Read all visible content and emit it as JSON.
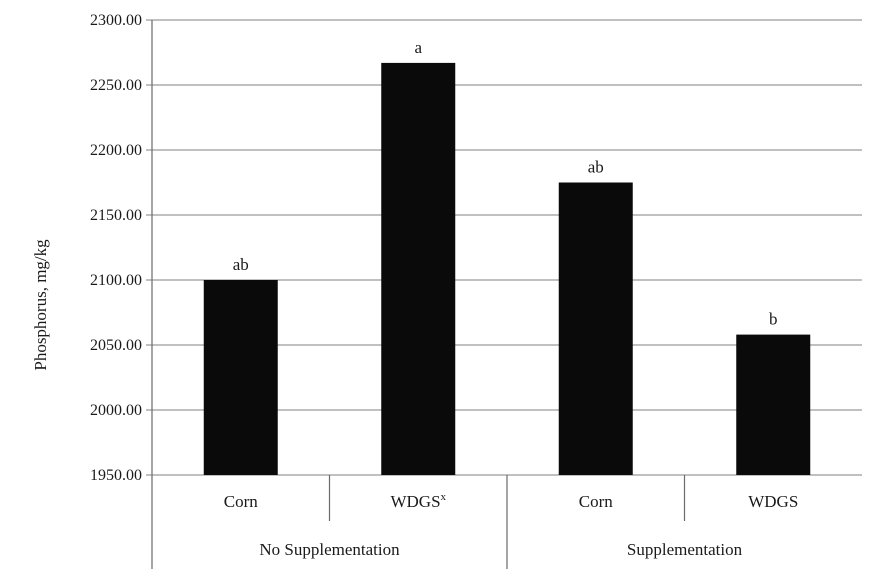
{
  "chart_data": {
    "type": "bar",
    "ylabel": "Phosphorus, mg/kg",
    "ylim": [
      1950,
      2300
    ],
    "yticks": [
      "1950.00",
      "2000.00",
      "2050.00",
      "2100.00",
      "2150.00",
      "2200.00",
      "2250.00",
      "2300.00"
    ],
    "grid": true,
    "groups": [
      {
        "label": "No Supplementation",
        "categories": [
          "Corn",
          "WDGS"
        ]
      },
      {
        "label": "Supplementation",
        "categories": [
          "Corn",
          "WDGS"
        ]
      }
    ],
    "bars": [
      {
        "category": "Corn",
        "superscript": "",
        "group": "No Supplementation",
        "value": 2100,
        "label": "ab"
      },
      {
        "category": "WDGS",
        "superscript": "x",
        "group": "No Supplementation",
        "value": 2267,
        "label": "a"
      },
      {
        "category": "Corn",
        "superscript": "",
        "group": "Supplementation",
        "value": 2175,
        "label": "ab"
      },
      {
        "category": "WDGS",
        "superscript": "",
        "group": "Supplementation",
        "value": 2058,
        "label": "b"
      }
    ]
  }
}
